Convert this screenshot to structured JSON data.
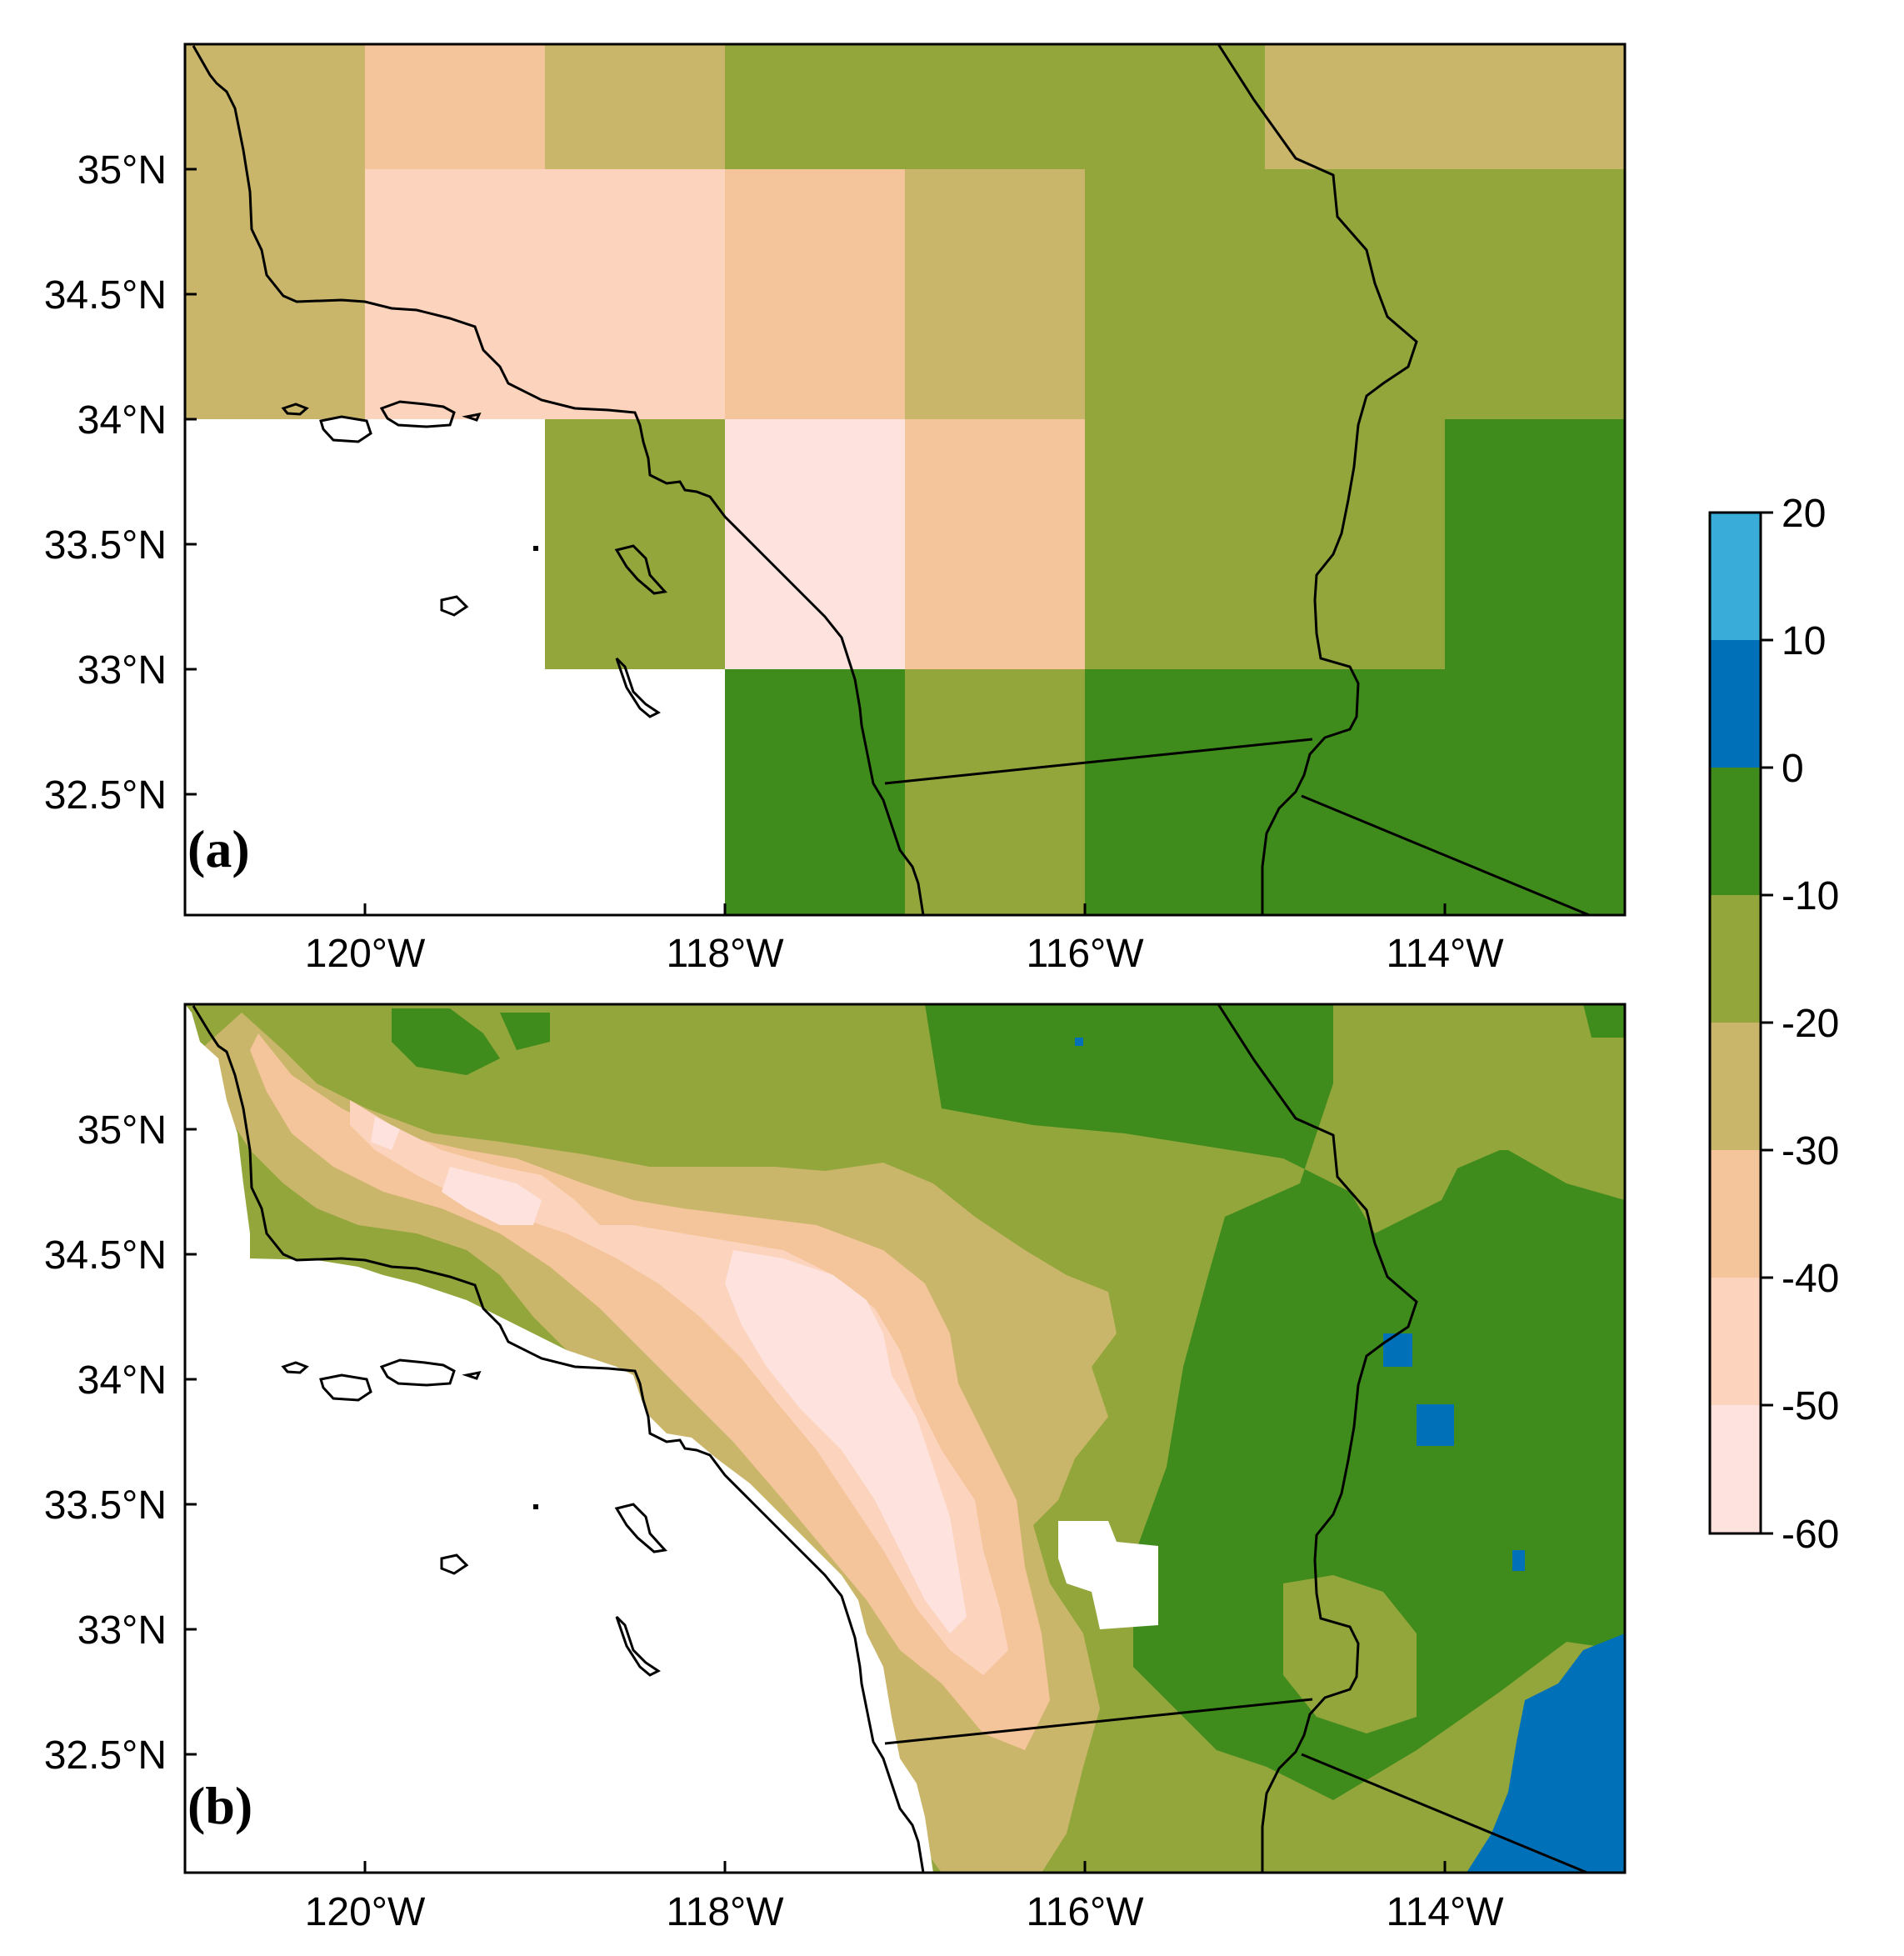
{
  "panels": [
    {
      "label": "(a)",
      "lat_ticks": [
        "35°N",
        "34.5°N",
        "34°N",
        "33.5°N",
        "33°N",
        "32.5°N"
      ],
      "lon_ticks": [
        "120°W",
        "118°W",
        "116°W",
        "114°W"
      ]
    },
    {
      "label": "(b)",
      "lat_ticks": [
        "35°N",
        "34.5°N",
        "34°N",
        "33.5°N",
        "33°N",
        "32.5°N"
      ],
      "lon_ticks": [
        "120°W",
        "118°W",
        "116°W",
        "114°W"
      ]
    }
  ],
  "colorbar": {
    "ticks": [
      "20",
      "10",
      "0",
      "-10",
      "-20",
      "-30",
      "-40",
      "-50",
      "-60"
    ],
    "colors": [
      "#39acd9",
      "#0071b8",
      "#3f8c1c",
      "#92a63c",
      "#c9b66a",
      "#f4c59a",
      "#fcd3bc",
      "#fde2de"
    ]
  },
  "colors": {
    "pink_light": "#fde2de",
    "pink": "#fcd3bc",
    "peach": "#f4c59a",
    "tan": "#c9b66a",
    "olive": "#92a63c",
    "green": "#3f8c1c",
    "blue": "#0071b8",
    "cyan": "#39acd9"
  }
}
